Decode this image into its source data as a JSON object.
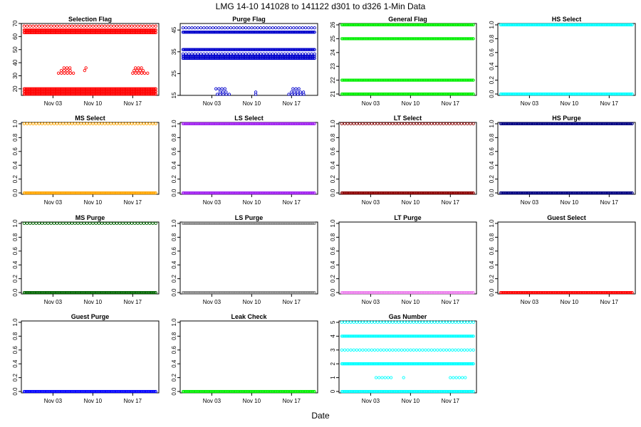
{
  "page": {
    "title": "LMG  14-10    141028 to 141122    d301 to d326   1-Min Data",
    "xlabel": "Date"
  },
  "chart_data": [
    {
      "type": "scatter",
      "title": "Selection Flag",
      "color": "#ff0000",
      "ylim": [
        15,
        70
      ],
      "yticks": [
        20,
        30,
        40,
        50,
        60,
        70
      ],
      "xticks": [
        "Nov 03",
        "Nov 10",
        "Nov 17"
      ],
      "levels": [
        {
          "y": 16,
          "pattern": "dense"
        },
        {
          "y": 18,
          "pattern": "dense"
        },
        {
          "y": 20,
          "pattern": "dense"
        },
        {
          "y": 32,
          "pattern": "sparse",
          "ranges": [
            [
              0.27,
              0.38
            ],
            [
              0.81,
              0.92
            ]
          ]
        },
        {
          "y": 34,
          "pattern": "sparse",
          "ranges": [
            [
              0.29,
              0.37
            ],
            [
              0.46,
              0.48
            ],
            [
              0.82,
              0.9
            ]
          ]
        },
        {
          "y": 36,
          "pattern": "sparse",
          "ranges": [
            [
              0.31,
              0.36
            ],
            [
              0.47,
              0.49
            ],
            [
              0.83,
              0.88
            ]
          ]
        },
        {
          "y": 63,
          "pattern": "dense"
        },
        {
          "y": 65,
          "pattern": "dense"
        },
        {
          "y": 68,
          "pattern": "sparse"
        }
      ]
    },
    {
      "type": "scatter",
      "title": "Purge Flag",
      "color": "#0000cc",
      "ylim": [
        15,
        48
      ],
      "yticks": [
        15,
        25,
        35,
        45
      ],
      "xticks": [
        "Nov 03",
        "Nov 10",
        "Nov 17"
      ],
      "levels": [
        {
          "y": 15.5,
          "pattern": "sparse",
          "ranges": [
            [
              0.27,
              0.36
            ],
            [
              0.55,
              0.57
            ],
            [
              0.79,
              0.91
            ]
          ]
        },
        {
          "y": 16.5,
          "pattern": "sparse",
          "ranges": [
            [
              0.29,
              0.35
            ],
            [
              0.55,
              0.57
            ],
            [
              0.81,
              0.9
            ]
          ]
        },
        {
          "y": 18,
          "pattern": "sparse",
          "ranges": [
            [
              0.26,
              0.34
            ],
            [
              0.82,
              0.88
            ]
          ]
        },
        {
          "y": 32,
          "pattern": "dense"
        },
        {
          "y": 33,
          "pattern": "dense"
        },
        {
          "y": 34,
          "pattern": "sparse"
        },
        {
          "y": 36,
          "pattern": "dense"
        },
        {
          "y": 44,
          "pattern": "dense"
        },
        {
          "y": 46,
          "pattern": "sparse"
        }
      ]
    },
    {
      "type": "scatter",
      "title": "General Flag",
      "color": "#00ee00",
      "ylim": [
        20.9,
        26.1
      ],
      "yticks": [
        21,
        22,
        23,
        24,
        25,
        26
      ],
      "xticks": [
        "Nov 03",
        "Nov 10",
        "Nov 17"
      ],
      "levels": [
        {
          "y": 21,
          "pattern": "dense"
        },
        {
          "y": 22,
          "pattern": "dense"
        },
        {
          "y": 25,
          "pattern": "dense"
        },
        {
          "y": 26,
          "pattern": "dense"
        }
      ]
    },
    {
      "type": "scatter",
      "title": "HS Select",
      "color": "#00ffff",
      "ylim": [
        -0.02,
        1.02
      ],
      "yticks": [
        0.0,
        0.2,
        0.4,
        0.6,
        0.8,
        1.0
      ],
      "xticks": [
        "Nov 03",
        "Nov 10",
        "Nov 17"
      ],
      "levels": [
        {
          "y": 0,
          "pattern": "dense"
        },
        {
          "y": 1,
          "pattern": "dense"
        }
      ]
    },
    {
      "type": "scatter",
      "title": "MS Select",
      "color": "#ffa500",
      "ylim": [
        -0.02,
        1.02
      ],
      "yticks": [
        0.0,
        0.2,
        0.4,
        0.6,
        0.8,
        1.0
      ],
      "xticks": [
        "Nov 03",
        "Nov 10",
        "Nov 17"
      ],
      "levels": [
        {
          "y": 0,
          "pattern": "dense"
        },
        {
          "y": 1,
          "pattern": "sparse"
        }
      ]
    },
    {
      "type": "scatter",
      "title": "LS Select",
      "color": "#a020f0",
      "ylim": [
        -0.02,
        1.02
      ],
      "yticks": [
        0.0,
        0.2,
        0.4,
        0.6,
        0.8,
        1.0
      ],
      "xticks": [
        "Nov 03",
        "Nov 10",
        "Nov 17"
      ],
      "levels": [
        {
          "y": 0,
          "pattern": "dense"
        },
        {
          "y": 1,
          "pattern": "dense"
        }
      ]
    },
    {
      "type": "scatter",
      "title": "LT Select",
      "color": "#8b0000",
      "ylim": [
        -0.02,
        1.02
      ],
      "yticks": [
        0.0,
        0.2,
        0.4,
        0.6,
        0.8,
        1.0
      ],
      "xticks": [
        "Nov 03",
        "Nov 10",
        "Nov 17"
      ],
      "levels": [
        {
          "y": 0,
          "pattern": "dense"
        },
        {
          "y": 1,
          "pattern": "sparse"
        }
      ]
    },
    {
      "type": "scatter",
      "title": "HS Purge",
      "color": "#000080",
      "ylim": [
        -0.02,
        1.02
      ],
      "yticks": [
        0.0,
        0.2,
        0.4,
        0.6,
        0.8,
        1.0
      ],
      "xticks": [
        "Nov 03",
        "Nov 10",
        "Nov 17"
      ],
      "levels": [
        {
          "y": 0,
          "pattern": "dense"
        },
        {
          "y": 1,
          "pattern": "dense"
        }
      ]
    },
    {
      "type": "scatter",
      "title": "MS Purge",
      "color": "#006400",
      "ylim": [
        -0.02,
        1.02
      ],
      "yticks": [
        0.0,
        0.2,
        0.4,
        0.6,
        0.8,
        1.0
      ],
      "xticks": [
        "Nov 03",
        "Nov 10",
        "Nov 17"
      ],
      "levels": [
        {
          "y": 0,
          "pattern": "dense"
        },
        {
          "y": 1,
          "pattern": "sparse"
        }
      ]
    },
    {
      "type": "scatter",
      "title": "LS Purge",
      "color": "#888888",
      "ylim": [
        -0.02,
        1.02
      ],
      "yticks": [
        0.0,
        0.2,
        0.4,
        0.6,
        0.8,
        1.0
      ],
      "xticks": [
        "Nov 03",
        "Nov 10",
        "Nov 17"
      ],
      "levels": [
        {
          "y": 0,
          "pattern": "dense"
        },
        {
          "y": 1,
          "pattern": "dense"
        }
      ]
    },
    {
      "type": "scatter",
      "title": "LT Purge",
      "color": "#ee82ee",
      "ylim": [
        -0.02,
        1.02
      ],
      "yticks": [
        0.0,
        0.2,
        0.4,
        0.6,
        0.8,
        1.0
      ],
      "xticks": [
        "Nov 03",
        "Nov 10",
        "Nov 17"
      ],
      "levels": [
        {
          "y": 0,
          "pattern": "dense"
        }
      ]
    },
    {
      "type": "scatter",
      "title": "Guest Select",
      "color": "#ff0000",
      "ylim": [
        -0.02,
        1.02
      ],
      "yticks": [
        0.0,
        0.2,
        0.4,
        0.6,
        0.8,
        1.0
      ],
      "xticks": [
        "Nov 03",
        "Nov 10",
        "Nov 17"
      ],
      "levels": [
        {
          "y": 0,
          "pattern": "dense"
        }
      ]
    },
    {
      "type": "scatter",
      "title": "Guest Purge",
      "color": "#0000ff",
      "ylim": [
        -0.02,
        1.02
      ],
      "yticks": [
        0.0,
        0.2,
        0.4,
        0.6,
        0.8,
        1.0
      ],
      "xticks": [
        "Nov 03",
        "Nov 10",
        "Nov 17"
      ],
      "levels": [
        {
          "y": 0,
          "pattern": "dense"
        }
      ]
    },
    {
      "type": "scatter",
      "title": "Leak Check",
      "color": "#00ee00",
      "ylim": [
        -0.02,
        1.02
      ],
      "yticks": [
        0.0,
        0.2,
        0.4,
        0.6,
        0.8,
        1.0
      ],
      "xticks": [
        "Nov 03",
        "Nov 10",
        "Nov 17"
      ],
      "levels": [
        {
          "y": 0,
          "pattern": "dense"
        }
      ]
    },
    {
      "type": "scatter",
      "title": "Gas Number",
      "color": "#00ffff",
      "ylim": [
        -0.1,
        5.1
      ],
      "yticks": [
        0,
        1,
        2,
        3,
        4,
        5
      ],
      "xticks": [
        "Nov 03",
        "Nov 10",
        "Nov 17"
      ],
      "levels": [
        {
          "y": 0,
          "pattern": "dense"
        },
        {
          "y": 1,
          "pattern": "sparse",
          "ranges": [
            [
              0.27,
              0.38
            ],
            [
              0.47,
              0.49
            ],
            [
              0.81,
              0.92
            ]
          ]
        },
        {
          "y": 2,
          "pattern": "dense"
        },
        {
          "y": 3,
          "pattern": "sparse"
        },
        {
          "y": 4,
          "pattern": "dense"
        },
        {
          "y": 5,
          "pattern": "sparse"
        }
      ]
    }
  ]
}
